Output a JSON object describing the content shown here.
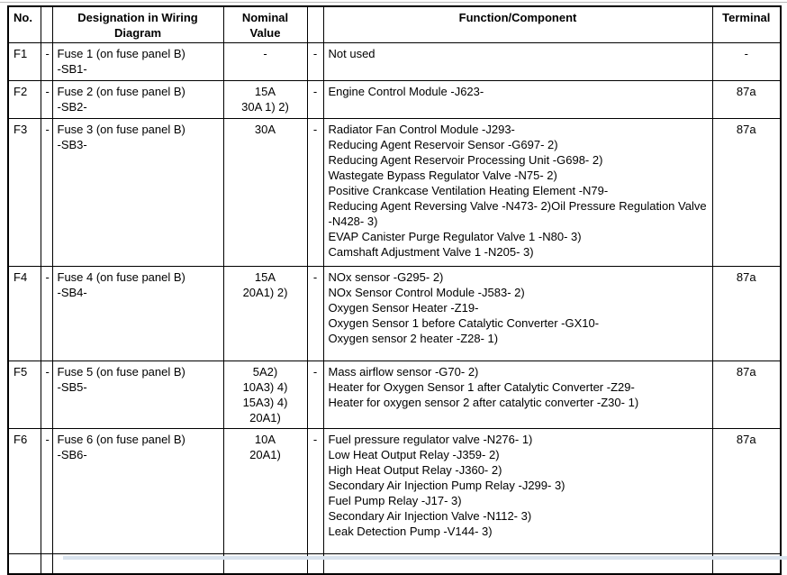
{
  "page": {
    "top_rule_color": "#b9b9b9",
    "bottom_strip_color": "#d9e3ee"
  },
  "table": {
    "headers": {
      "no": "No.",
      "dash1": "",
      "designation": "Designation in Wiring Diagram",
      "nominal": "Nominal\nValue",
      "dash2": "",
      "function": "Function/Component",
      "terminal": "Terminal"
    },
    "rows": [
      {
        "no": "F1",
        "dash1": "-",
        "designation": "Fuse 1 (on fuse panel B)\n-SB1-",
        "nominal": "-",
        "dash2": "-",
        "functions": "Not used",
        "terminal": "-"
      },
      {
        "no": "F2",
        "dash1": "-",
        "designation": "Fuse 2 (on fuse panel B)\n-SB2-",
        "nominal": "15A\n30A 1) 2)",
        "dash2": "-",
        "functions": "Engine Control Module -J623-",
        "terminal": "87a"
      },
      {
        "no": "F3",
        "dash1": "-",
        "designation": "Fuse 3 (on fuse panel B)\n-SB3-",
        "nominal": "30A",
        "dash2": "-",
        "functions": "Radiator Fan Control Module -J293-\nReducing Agent Reservoir Sensor -G697- 2)\nReducing Agent Reservoir Processing Unit -G698- 2)\nWastegate Bypass Regulator Valve -N75- 2)\nPositive Crankcase Ventilation Heating Element -N79-\nReducing Agent Reversing Valve -N473- 2)Oil Pressure Regulation Valve -N428- 3)\nEVAP Canister Purge Regulator Valve 1 -N80- 3)\nCamshaft Adjustment Valve 1 -N205- 3)",
        "terminal": "87a"
      },
      {
        "no": "F4",
        "dash1": "-",
        "designation": "Fuse 4 (on fuse panel B)\n-SB4-",
        "nominal": "15A\n20A1) 2)",
        "dash2": "-",
        "functions": "NOx sensor -G295- 2)\nNOx Sensor Control Module -J583- 2)\nOxygen Sensor Heater -Z19-\nOxygen Sensor 1 before Catalytic Converter -GX10-\nOxygen sensor 2 heater -Z28- 1)",
        "terminal": "87a"
      },
      {
        "no": "F5",
        "dash1": "-",
        "designation": "Fuse 5 (on fuse panel B)\n-SB5-",
        "nominal": "5A2)\n10A3) 4)\n15A3) 4)\n20A1)",
        "dash2": "-",
        "functions": "Mass airflow sensor -G70- 2)\nHeater for Oxygen Sensor 1 after Catalytic Converter -Z29-\nHeater for oxygen sensor 2 after catalytic converter -Z30- 1)",
        "terminal": "87a"
      },
      {
        "no": "F6",
        "dash1": "-",
        "designation": "Fuse 6 (on fuse panel B)\n-SB6-",
        "nominal": "10A\n20A1)",
        "dash2": "-",
        "functions": "Fuel pressure regulator valve -N276- 1)\nLow Heat Output Relay -J359- 2)\nHigh Heat Output Relay -J360- 2)\nSecondary Air Injection Pump Relay -J299- 3)\nFuel Pump Relay -J17- 3)\nSecondary Air Injection Valve -N112- 3)\nLeak Detection Pump -V144- 3)",
        "terminal": "87a"
      }
    ]
  }
}
